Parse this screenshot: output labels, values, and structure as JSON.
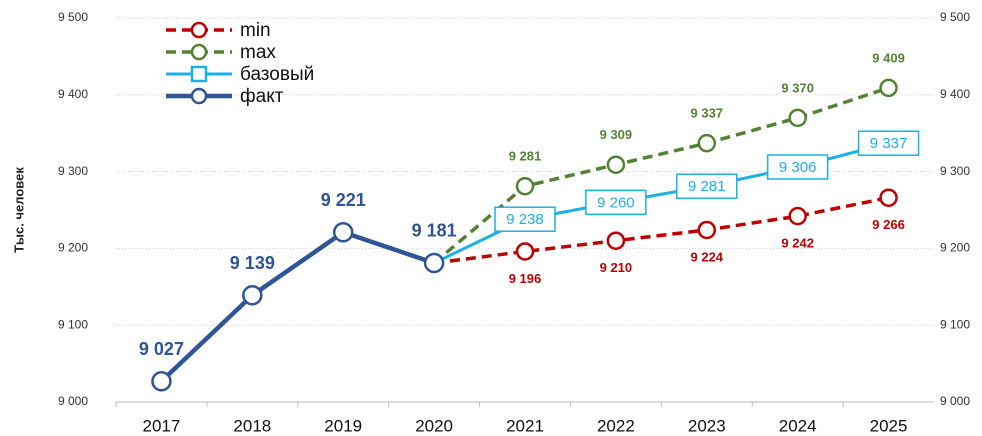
{
  "chart_data": {
    "type": "line",
    "y_label": "Тыс. человек",
    "categories": [
      "2017",
      "2018",
      "2019",
      "2020",
      "2021",
      "2022",
      "2023",
      "2024",
      "2025"
    ],
    "series": [
      {
        "name": "min",
        "color": "#c00000",
        "dash": true,
        "marker": "circle",
        "values": [
          null,
          null,
          null,
          9181,
          9196,
          9210,
          9224,
          9242,
          9266
        ],
        "value_labels": [
          null,
          null,
          null,
          null,
          "9 196",
          "9 210",
          "9 224",
          "9 242",
          "9 266"
        ]
      },
      {
        "name": "max",
        "color": "#548235",
        "dash": true,
        "marker": "circle",
        "values": [
          null,
          null,
          null,
          9181,
          9281,
          9309,
          9337,
          9370,
          9409
        ],
        "value_labels": [
          null,
          null,
          null,
          null,
          "9 281",
          "9 309",
          "9 337",
          "9 370",
          "9 409"
        ]
      },
      {
        "name": "базовый",
        "color": "#1cb0e8",
        "dash": false,
        "marker": "square",
        "values": [
          null,
          null,
          null,
          9181,
          9238,
          9260,
          9281,
          9306,
          9337
        ],
        "value_labels": [
          null,
          null,
          null,
          null,
          "9 238",
          "9 260",
          "9 281",
          "9 306",
          "9 337"
        ]
      },
      {
        "name": "факт",
        "color": "#2f5597",
        "dash": false,
        "marker": "circle",
        "values": [
          9027,
          9139,
          9221,
          9181,
          null,
          null,
          null,
          null,
          null
        ],
        "value_labels": [
          "9 027",
          "9 139",
          "9 221",
          "9 181",
          null,
          null,
          null,
          null,
          null
        ]
      }
    ],
    "ylim": [
      9000,
      9500
    ],
    "yticks": [
      {
        "value": 9000,
        "label": "9 000"
      },
      {
        "value": 9100,
        "label": "9 100"
      },
      {
        "value": 9200,
        "label": "9 200"
      },
      {
        "value": 9300,
        "label": "9 300"
      },
      {
        "value": 9400,
        "label": "9 400"
      },
      {
        "value": 9500,
        "label": "9 500"
      }
    ],
    "y2lim": [
      9000,
      9500
    ],
    "y2ticks": [
      {
        "value": 9000,
        "label": "9 000"
      },
      {
        "value": 9100,
        "label": "9 100"
      },
      {
        "value": 9200,
        "label": "9 200"
      },
      {
        "value": 9300,
        "label": "9 300"
      },
      {
        "value": 9400,
        "label": "9 400"
      },
      {
        "value": 9500,
        "label": "9 500"
      }
    ],
    "grid": true,
    "legend": "top-left"
  }
}
